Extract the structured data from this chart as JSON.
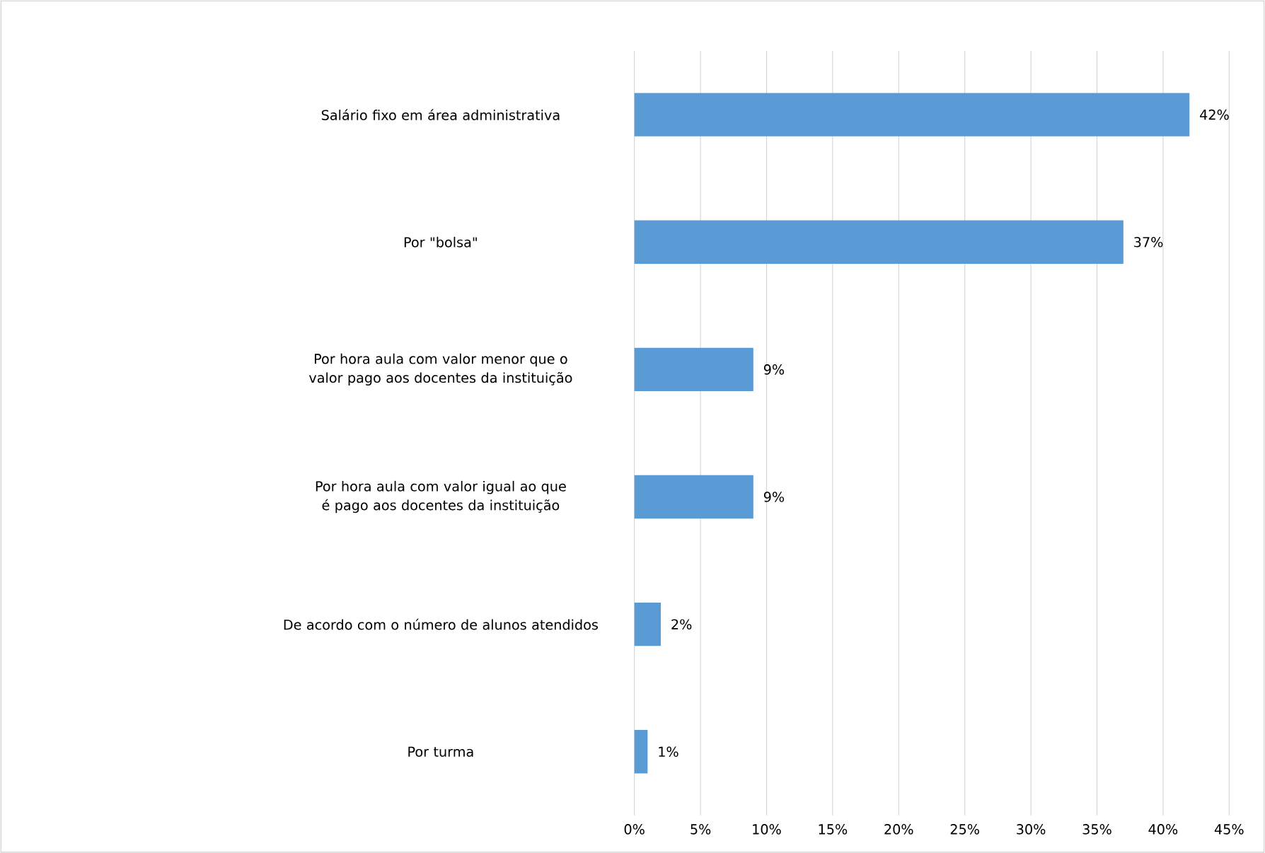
{
  "chart_data": {
    "type": "bar",
    "orientation": "horizontal",
    "categories": [
      "Salário fixo em área administrativa",
      "Por \"bolsa\"",
      "Por hora aula com valor menor que o valor pago aos docentes da instituição",
      "Por hora aula com valor igual ao que é pago aos docentes da instituição",
      "De acordo com o número de alunos atendidos",
      "Por turma"
    ],
    "values": [
      42,
      37,
      9,
      9,
      2,
      1
    ],
    "value_labels": [
      "42%",
      "37%",
      "9%",
      "9%",
      "2%",
      "1%"
    ],
    "color": "#5b9bd5",
    "xlim": [
      0,
      45
    ],
    "xticks": [
      {
        "value": 0,
        "label": "0%"
      },
      {
        "value": 5,
        "label": "5%"
      },
      {
        "value": 10,
        "label": "10%"
      },
      {
        "value": 15,
        "label": "15%"
      },
      {
        "value": 20,
        "label": "20%"
      },
      {
        "value": 25,
        "label": "25%"
      },
      {
        "value": 30,
        "label": "30%"
      },
      {
        "value": 35,
        "label": "35%"
      },
      {
        "value": 40,
        "label": "40%"
      },
      {
        "value": 45,
        "label": "45%"
      }
    ],
    "grid": "x"
  }
}
